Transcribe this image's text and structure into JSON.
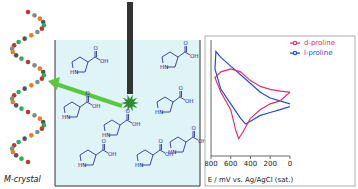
{
  "chart_data": {
    "type": "line",
    "xlabel": "E / mV vs. Ag/AgCl (sat.)",
    "xlim": [
      800,
      0
    ],
    "xticks": [
      800,
      600,
      400,
      200,
      0
    ],
    "ylim": [
      -1,
      1
    ],
    "tick_labels": "x",
    "legend": "upper right",
    "series": [
      {
        "name": "l-proline",
        "color": "#1f4fd1",
        "x": [
          0,
          100,
          200,
          300,
          400,
          500,
          600,
          700,
          750,
          760,
          700,
          600,
          500,
          450,
          400,
          300,
          200,
          100,
          0
        ],
        "values": [
          -0.1,
          -0.05,
          0.0,
          0.1,
          0.25,
          0.4,
          0.55,
          0.7,
          0.8,
          0.5,
          0.15,
          -0.1,
          -0.35,
          -0.45,
          -0.4,
          -0.3,
          -0.25,
          -0.2,
          -0.15
        ]
      },
      {
        "name": "d-proline",
        "color": "#e0306a",
        "x": [
          0,
          100,
          200,
          300,
          400,
          500,
          600,
          700,
          760,
          700,
          600,
          550,
          520,
          480,
          400,
          300,
          200,
          100,
          0
        ],
        "values": [
          0.1,
          0.12,
          0.15,
          0.2,
          0.3,
          0.45,
          0.5,
          0.45,
          0.35,
          0.1,
          -0.2,
          -0.55,
          -0.7,
          -0.6,
          -0.35,
          -0.2,
          -0.1,
          -0.05,
          0.1
        ]
      }
    ]
  },
  "diagram": {
    "crystal_label": "M-crystal",
    "molecule_labels": {
      "amine": "HN",
      "acid": "OH",
      "carbonyl": "O"
    }
  }
}
